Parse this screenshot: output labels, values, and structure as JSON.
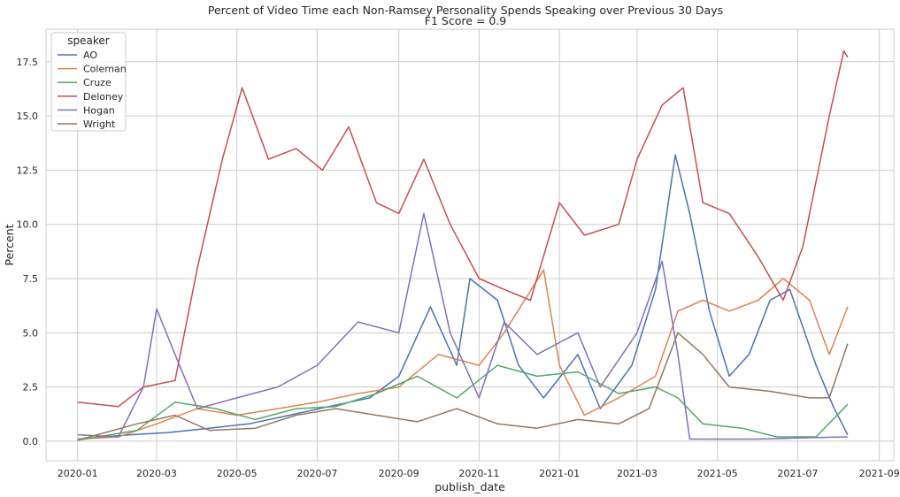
{
  "chart_data": {
    "type": "line",
    "title": "Percent of Video Time each Non-Ramsey Personality Spends Speaking over Previous 30 Days",
    "subtitle": "F1 Score = 0.9",
    "xlabel": "publish_date",
    "ylabel": "Percent",
    "xlim": [
      "2019-12-08",
      "2021-09-12"
    ],
    "ylim": [
      -0.9,
      19.0
    ],
    "grid": true,
    "legend": {
      "title": "speaker",
      "placement": "top-left"
    },
    "x_ticks": [
      "2020-01",
      "2020-03",
      "2020-05",
      "2020-07",
      "2020-09",
      "2020-11",
      "2021-01",
      "2021-03",
      "2021-05",
      "2021-07",
      "2021-09"
    ],
    "y_ticks": [
      "0.0",
      "2.5",
      "5.0",
      "7.5",
      "10.0",
      "12.5",
      "15.0",
      "17.5"
    ],
    "series": [
      {
        "name": "AO",
        "color": "#4c72b0",
        "x": [
          "2020-01-01",
          "2020-02-10",
          "2020-03-10",
          "2020-04-10",
          "2020-05-10",
          "2020-06-10",
          "2020-07-10",
          "2020-08-10",
          "2020-09-01",
          "2020-09-25",
          "2020-10-15",
          "2020-10-25",
          "2020-11-15",
          "2020-12-01",
          "2020-12-20",
          "2021-01-15",
          "2021-02-01",
          "2021-02-25",
          "2021-03-15",
          "2021-03-30",
          "2021-04-10",
          "2021-04-25",
          "2021-05-10",
          "2021-05-25",
          "2021-06-10",
          "2021-06-25",
          "2021-07-15",
          "2021-07-28",
          "2021-08-08"
        ],
        "values": [
          0.1,
          0.3,
          0.4,
          0.6,
          0.8,
          1.2,
          1.6,
          2.0,
          3.0,
          6.2,
          3.5,
          7.5,
          6.5,
          3.5,
          2.0,
          4.0,
          1.5,
          3.5,
          7.0,
          13.2,
          10.5,
          6.0,
          3.0,
          4.0,
          6.5,
          7.0,
          3.5,
          1.6,
          0.3
        ]
      },
      {
        "name": "Coleman",
        "color": "#dd8452",
        "x": [
          "2020-01-01",
          "2020-02-01",
          "2020-03-01",
          "2020-04-01",
          "2020-05-01",
          "2020-06-01",
          "2020-07-01",
          "2020-08-01",
          "2020-09-01",
          "2020-10-01",
          "2020-11-01",
          "2020-11-20",
          "2020-12-20",
          "2021-01-01",
          "2021-01-20",
          "2021-02-15",
          "2021-03-15",
          "2021-04-01",
          "2021-04-20",
          "2021-05-10",
          "2021-06-01",
          "2021-06-20",
          "2021-07-10",
          "2021-07-25",
          "2021-08-08"
        ],
        "values": [
          0.1,
          0.2,
          0.8,
          1.5,
          1.2,
          1.5,
          1.8,
          2.2,
          2.5,
          4.0,
          3.5,
          5.0,
          7.9,
          3.5,
          1.2,
          2.0,
          3.0,
          6.0,
          6.5,
          6.0,
          6.5,
          7.5,
          6.5,
          4.0,
          6.2
        ]
      },
      {
        "name": "Cruze",
        "color": "#55a868",
        "x": [
          "2020-01-01",
          "2020-02-15",
          "2020-03-15",
          "2020-04-15",
          "2020-05-15",
          "2020-06-15",
          "2020-07-15",
          "2020-08-15",
          "2020-09-15",
          "2020-10-15",
          "2020-11-15",
          "2020-12-15",
          "2021-01-15",
          "2021-02-15",
          "2021-03-15",
          "2021-04-01",
          "2021-04-20",
          "2021-05-20",
          "2021-06-15",
          "2021-07-15",
          "2021-08-08"
        ],
        "values": [
          0.05,
          0.5,
          1.8,
          1.5,
          1.0,
          1.5,
          1.6,
          2.2,
          3.0,
          2.0,
          3.5,
          3.0,
          3.2,
          2.2,
          2.5,
          2.0,
          0.8,
          0.6,
          0.2,
          0.2,
          1.7
        ]
      },
      {
        "name": "Deloney",
        "color": "#c44e52",
        "x": [
          "2020-01-01",
          "2020-02-01",
          "2020-02-20",
          "2020-03-15",
          "2020-04-01",
          "2020-04-20",
          "2020-05-05",
          "2020-05-25",
          "2020-06-15",
          "2020-07-05",
          "2020-07-25",
          "2020-08-15",
          "2020-09-01",
          "2020-09-20",
          "2020-10-10",
          "2020-11-01",
          "2020-11-20",
          "2020-12-10",
          "2021-01-01",
          "2021-01-20",
          "2021-02-15",
          "2021-03-01",
          "2021-03-20",
          "2021-04-05",
          "2021-04-20",
          "2021-05-10",
          "2021-06-01",
          "2021-06-20",
          "2021-07-05",
          "2021-07-25",
          "2021-08-05",
          "2021-08-08"
        ],
        "values": [
          1.8,
          1.6,
          2.5,
          2.8,
          8.0,
          13.0,
          16.3,
          13.0,
          13.5,
          12.5,
          14.5,
          11.0,
          10.5,
          13.0,
          10.0,
          7.5,
          7.0,
          6.5,
          11.0,
          9.5,
          10.0,
          13.0,
          15.5,
          16.3,
          11.0,
          10.5,
          8.5,
          6.5,
          9.0,
          15.0,
          18.0,
          17.7
        ]
      },
      {
        "name": "Hogan",
        "color": "#8172b3",
        "x": [
          "2020-01-01",
          "2020-02-01",
          "2020-02-20",
          "2020-03-01",
          "2020-03-15",
          "2020-04-01",
          "2020-05-01",
          "2020-06-01",
          "2020-07-01",
          "2020-08-01",
          "2020-09-01",
          "2020-09-20",
          "2020-10-10",
          "2020-11-01",
          "2020-11-20",
          "2020-12-15",
          "2021-01-15",
          "2021-02-01",
          "2021-03-01",
          "2021-03-20",
          "2021-04-01",
          "2021-04-10",
          "2021-05-01",
          "2021-06-01",
          "2021-07-01",
          "2021-08-08"
        ],
        "values": [
          0.3,
          0.2,
          2.5,
          6.1,
          4.0,
          1.5,
          2.0,
          2.5,
          3.5,
          5.5,
          5.0,
          10.5,
          5.0,
          2.0,
          5.5,
          4.0,
          5.0,
          2.5,
          5.0,
          8.3,
          4.0,
          0.1,
          0.1,
          0.1,
          0.15,
          0.2
        ]
      },
      {
        "name": "Wright",
        "color": "#937860",
        "x": [
          "2020-01-01",
          "2020-02-15",
          "2020-03-15",
          "2020-04-10",
          "2020-05-15",
          "2020-06-15",
          "2020-07-15",
          "2020-08-15",
          "2020-09-15",
          "2020-10-15",
          "2020-11-15",
          "2020-12-15",
          "2021-01-15",
          "2021-02-15",
          "2021-03-10",
          "2021-04-01",
          "2021-04-20",
          "2021-05-10",
          "2021-06-10",
          "2021-07-10",
          "2021-07-25",
          "2021-08-08"
        ],
        "values": [
          0.05,
          0.8,
          1.2,
          0.5,
          0.6,
          1.2,
          1.5,
          1.2,
          0.9,
          1.5,
          0.8,
          0.6,
          1.0,
          0.8,
          1.5,
          5.0,
          4.0,
          2.5,
          2.3,
          2.0,
          2.0,
          4.5
        ]
      }
    ]
  }
}
